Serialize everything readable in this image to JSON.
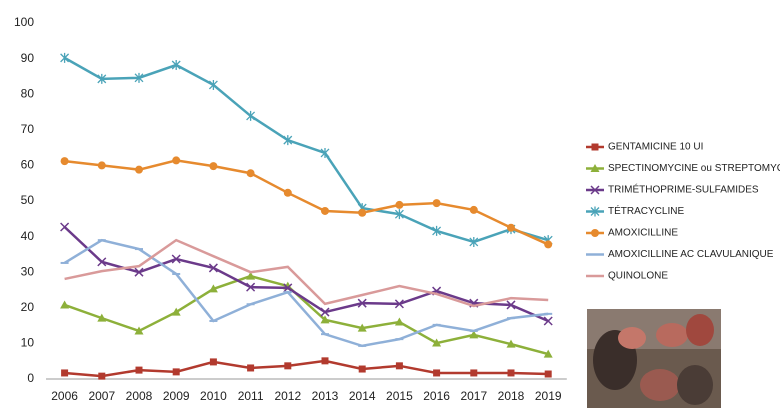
{
  "chart_data": {
    "type": "line",
    "categories": [
      "2006",
      "2007",
      "2008",
      "2009",
      "2010",
      "2011",
      "2012",
      "2013",
      "2014",
      "2015",
      "2016",
      "2017",
      "2018",
      "2019"
    ],
    "ylim": [
      0,
      100
    ],
    "yticks": [
      0,
      10,
      20,
      30,
      40,
      50,
      60,
      70,
      80,
      90,
      100
    ],
    "grid": false,
    "series": [
      {
        "name": "GENTAMICINE 10 UI",
        "color": "#b23a2e",
        "marker": "square",
        "values": [
          1.7,
          0.8,
          2.5,
          2,
          4.8,
          3.1,
          3.7,
          5.1,
          2.8,
          3.7,
          1.7,
          1.7,
          1.7,
          1.4
        ]
      },
      {
        "name": "SPECTINOMYCINE ou STREPTOMYCINE",
        "color": "#8db03a",
        "marker": "triangle",
        "values": [
          20.8,
          17.1,
          13.5,
          18.8,
          25.3,
          28.9,
          26.1,
          16.6,
          14.3,
          16,
          10.1,
          12.4,
          9.8,
          7
        ]
      },
      {
        "name": "TRIMÉTHOPRIME-SULFAMIDES",
        "color": "#6b3a8a",
        "marker": "x",
        "values": [
          42.7,
          32.9,
          30,
          33.7,
          31.2,
          25.8,
          25.6,
          18.8,
          21.3,
          21.1,
          24.7,
          21.3,
          20.8,
          16.3
        ]
      },
      {
        "name": "TÉTRACYCLINE",
        "color": "#4aa3b8",
        "marker": "star",
        "values": [
          90.2,
          84.3,
          84.6,
          88.2,
          82.6,
          73.9,
          67.1,
          63.5,
          48,
          46.3,
          41.6,
          38.5,
          42.1,
          39
        ]
      },
      {
        "name": "AMOXICILLINE",
        "color": "#e68a2e",
        "marker": "circle",
        "values": [
          61.2,
          60,
          58.8,
          61.4,
          59.8,
          57.8,
          52.3,
          47.2,
          46.7,
          48.9,
          49.4,
          47.5,
          42.5,
          37.8
        ]
      },
      {
        "name": "AMOXICILLINE AC CLAVULANIQUE",
        "color": "#8fb0d8",
        "marker": "dash",
        "values": [
          32.6,
          39,
          36.5,
          29.5,
          16.3,
          21,
          24.4,
          12.6,
          9.3,
          11.2,
          15.2,
          13.5,
          17.1,
          18.3
        ]
      },
      {
        "name": "QUINOLONE",
        "color": "#d99a9a",
        "marker": "none",
        "values": [
          28.1,
          30.3,
          31.7,
          39,
          34.5,
          30,
          31.5,
          21.1,
          23.6,
          26.1,
          23.9,
          20.5,
          22.7,
          22.2
        ]
      }
    ]
  }
}
